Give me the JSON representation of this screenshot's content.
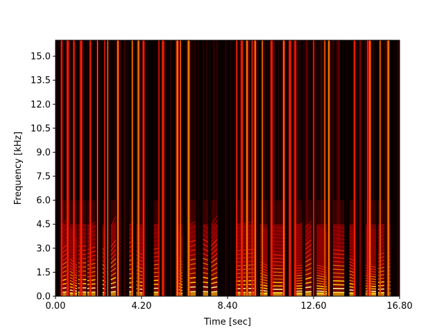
{
  "chart_data": {
    "type": "heatmap",
    "subtype": "spectrogram",
    "title": "",
    "xlabel": "Time [sec]",
    "ylabel": "Frequency [kHz]",
    "xlim": [
      0.0,
      16.8
    ],
    "ylim": [
      0.0,
      16.0
    ],
    "x_ticks": [
      0.0,
      4.2,
      8.4,
      12.6,
      16.8
    ],
    "x_tick_labels": [
      "0.00",
      "4.20",
      "8.40",
      "12.60",
      "16.80"
    ],
    "y_ticks": [
      0.0,
      1.5,
      3.0,
      4.5,
      6.0,
      7.5,
      9.0,
      10.5,
      12.0,
      13.5,
      15.0
    ],
    "y_tick_labels": [
      "0.0",
      "1.5",
      "3.0",
      "4.5",
      "6.0",
      "7.5",
      "9.0",
      "10.5",
      "12.0",
      "13.5",
      "15.0"
    ],
    "colormap": "hot",
    "colormap_colors": [
      "#0a0000",
      "#5a0000",
      "#b40000",
      "#ff2a00",
      "#ff8c00",
      "#ffd400",
      "#ffff9a"
    ],
    "grid": false,
    "voiced_segments_sec": [
      [
        0.25,
        0.6
      ],
      [
        0.7,
        1.05
      ],
      [
        1.1,
        1.5
      ],
      [
        1.55,
        1.95
      ],
      [
        2.3,
        2.45
      ],
      [
        2.7,
        2.95
      ],
      [
        3.6,
        3.8
      ],
      [
        3.95,
        4.3
      ],
      [
        4.8,
        5.05
      ],
      [
        5.9,
        6.2
      ],
      [
        6.5,
        6.85
      ],
      [
        7.2,
        7.45
      ],
      [
        7.6,
        7.9
      ],
      [
        8.8,
        9.7
      ],
      [
        10.0,
        10.35
      ],
      [
        10.55,
        11.2
      ],
      [
        11.65,
        12.05
      ],
      [
        12.2,
        12.5
      ],
      [
        12.75,
        13.25
      ],
      [
        13.55,
        14.1
      ],
      [
        14.35,
        14.65
      ],
      [
        15.15,
        15.65
      ],
      [
        15.75,
        16.05
      ],
      [
        16.2,
        16.35
      ]
    ],
    "burst_times_sec": [
      0.3,
      0.6,
      0.9,
      1.25,
      1.7,
      2.05,
      2.4,
      2.55,
      3.05,
      3.75,
      4.05,
      4.3,
      5.05,
      5.25,
      5.95,
      6.1,
      6.5,
      8.85,
      9.1,
      9.35,
      9.6,
      9.75,
      10.1,
      10.55,
      11.15,
      11.45,
      11.7,
      12.6,
      13.15,
      13.35,
      14.6,
      15.25,
      15.35,
      15.85,
      16.25
    ],
    "fundamental_range_khz": [
      0.15,
      0.3
    ],
    "harmonic_energy_max_khz": 4.5,
    "broadband_noise": true
  }
}
